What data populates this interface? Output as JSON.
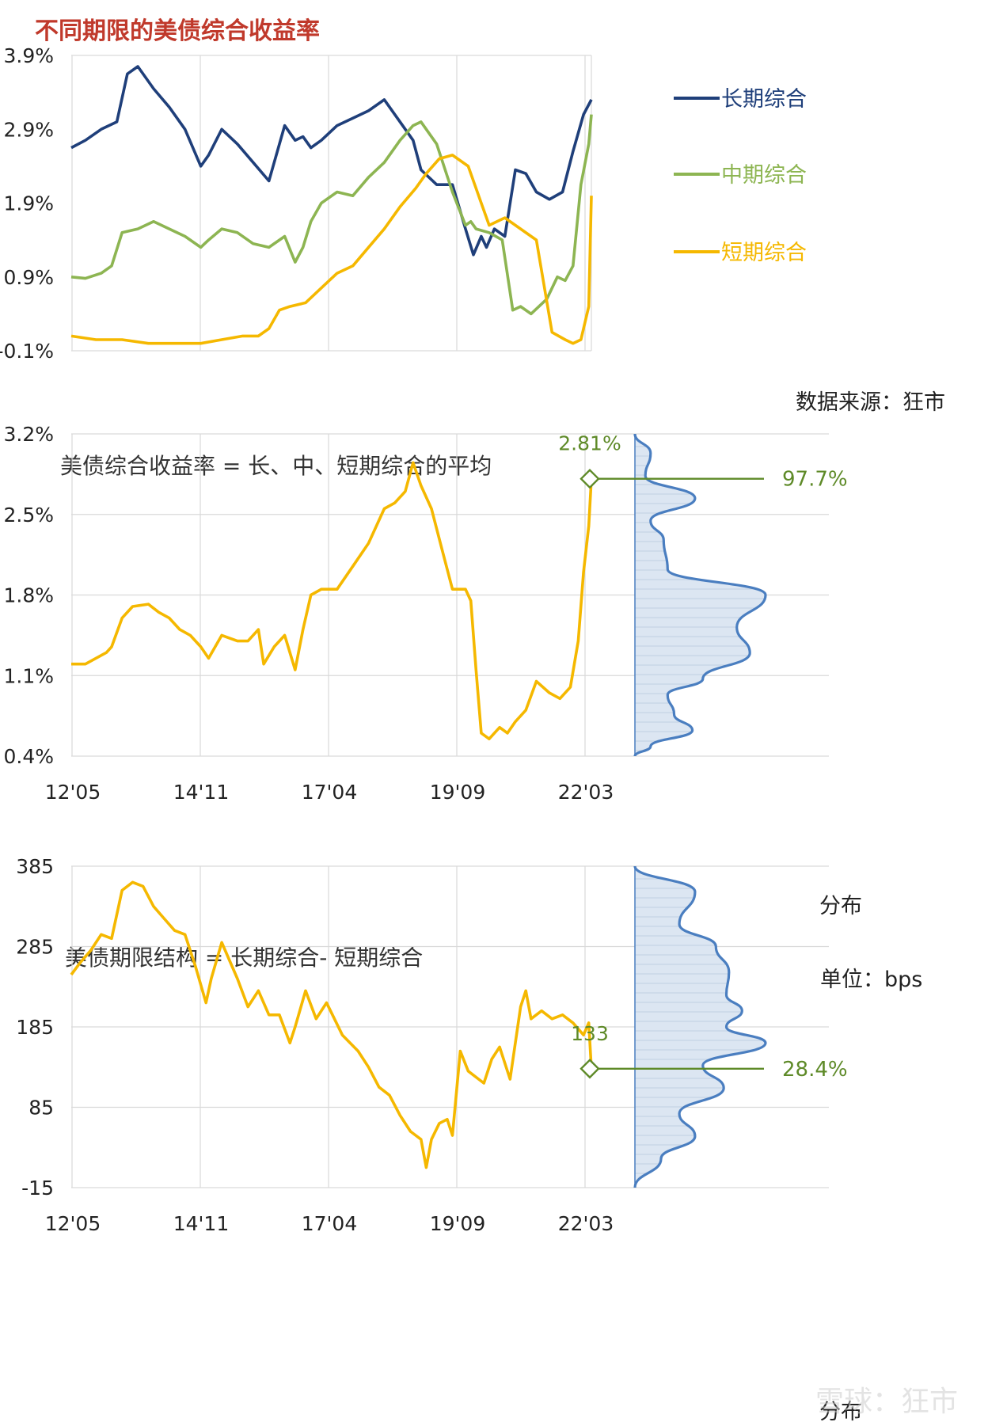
{
  "title": "不同期限的美债综合收益率",
  "source_note": "数据来源：狂市",
  "x_ticks": [
    "12'05",
    "14'11",
    "17'04",
    "19'09",
    "22'03"
  ],
  "panel2_title": "美债综合收益率 = 长、中、短期综合的平均",
  "panel3_title": "美债期限结构 = 长期综合- 短期综合",
  "panel3_unit": "单位：bps",
  "dist_label": "分布",
  "watermark": "雪球：狂市",
  "colors": {
    "long": "#1F3F7A",
    "mid": "#8DB552",
    "short": "#F5B800",
    "avg": "#F5B800",
    "marker": "#5E8A28",
    "dist_line": "#4A7EC0",
    "dist_fill": "#DCE6F2",
    "title": "#C0392B",
    "grid": "#D9D9D9"
  },
  "chart_data": [
    {
      "type": "line",
      "title": "不同期限的美债综合收益率",
      "x_ticks": [
        "12'05",
        "14'11",
        "17'04",
        "19'09",
        "22'03"
      ],
      "y_ticks": [
        "3.9%",
        "2.9%",
        "1.9%",
        "0.9%",
        "-0.1%"
      ],
      "ylim": [
        -0.1,
        3.9
      ],
      "xlim": [
        2012.33,
        2022.25
      ],
      "grid": "vertical",
      "legend": "right",
      "series": [
        {
          "name": "长期综合",
          "x": [
            2012.33,
            2012.6,
            2012.9,
            2013.2,
            2013.4,
            2013.6,
            2013.9,
            2014.2,
            2014.5,
            2014.8,
            2014.95,
            2015.2,
            2015.5,
            2015.8,
            2016.1,
            2016.4,
            2016.6,
            2016.75,
            2016.9,
            2017.1,
            2017.4,
            2017.7,
            2018.0,
            2018.3,
            2018.6,
            2018.85,
            2019.0,
            2019.3,
            2019.6,
            2019.85,
            2020.0,
            2020.15,
            2020.25,
            2020.4,
            2020.6,
            2020.8,
            2021.0,
            2021.2,
            2021.45,
            2021.7,
            2021.9,
            2022.1,
            2022.25
          ],
          "values": [
            2.65,
            2.75,
            2.9,
            3.0,
            3.65,
            3.75,
            3.45,
            3.2,
            2.9,
            2.4,
            2.55,
            2.9,
            2.7,
            2.45,
            2.2,
            2.95,
            2.75,
            2.8,
            2.65,
            2.75,
            2.95,
            3.05,
            3.15,
            3.3,
            3.0,
            2.75,
            2.35,
            2.15,
            2.15,
            1.55,
            1.2,
            1.45,
            1.3,
            1.55,
            1.45,
            2.35,
            2.3,
            2.05,
            1.95,
            2.05,
            2.6,
            3.1,
            3.3
          ]
        },
        {
          "name": "中期综合",
          "x": [
            2012.33,
            2012.6,
            2012.9,
            2013.1,
            2013.3,
            2013.6,
            2013.9,
            2014.2,
            2014.5,
            2014.8,
            2014.95,
            2015.2,
            2015.5,
            2015.8,
            2016.1,
            2016.4,
            2016.6,
            2016.75,
            2016.9,
            2017.1,
            2017.4,
            2017.7,
            2018.0,
            2018.3,
            2018.6,
            2018.85,
            2019.0,
            2019.3,
            2019.6,
            2019.85,
            2019.95,
            2020.05,
            2020.3,
            2020.55,
            2020.75,
            2020.9,
            2021.1,
            2021.4,
            2021.6,
            2021.75,
            2021.9,
            2022.05,
            2022.2,
            2022.25
          ],
          "values": [
            0.9,
            0.88,
            0.95,
            1.05,
            1.5,
            1.55,
            1.65,
            1.55,
            1.45,
            1.3,
            1.4,
            1.55,
            1.5,
            1.35,
            1.3,
            1.45,
            1.1,
            1.3,
            1.65,
            1.9,
            2.05,
            2.0,
            2.25,
            2.45,
            2.75,
            2.95,
            3.0,
            2.7,
            2.05,
            1.6,
            1.65,
            1.55,
            1.5,
            1.4,
            0.45,
            0.5,
            0.4,
            0.6,
            0.9,
            0.85,
            1.05,
            2.15,
            2.7,
            3.1
          ]
        },
        {
          "name": "短期综合",
          "x": [
            2012.33,
            2012.8,
            2013.3,
            2013.8,
            2014.3,
            2014.8,
            2015.2,
            2015.6,
            2015.9,
            2016.1,
            2016.3,
            2016.5,
            2016.8,
            2017.1,
            2017.4,
            2017.7,
            2018.0,
            2018.3,
            2018.6,
            2018.9,
            2019.1,
            2019.35,
            2019.6,
            2019.9,
            2020.05,
            2020.15,
            2020.3,
            2020.6,
            2020.9,
            2021.2,
            2021.5,
            2021.75,
            2021.9,
            2022.05,
            2022.2,
            2022.25
          ],
          "values": [
            0.1,
            0.05,
            0.05,
            0.0,
            0.0,
            0.0,
            0.05,
            0.1,
            0.1,
            0.2,
            0.45,
            0.5,
            0.55,
            0.75,
            0.95,
            1.05,
            1.3,
            1.55,
            1.85,
            2.1,
            2.3,
            2.5,
            2.55,
            2.4,
            2.1,
            1.9,
            1.6,
            1.7,
            1.55,
            1.4,
            0.15,
            0.05,
            0.0,
            0.05,
            0.5,
            2.0
          ]
        }
      ]
    },
    {
      "type": "line",
      "title": "美债综合收益率 = 长、中、短期综合的平均",
      "x_ticks": [
        "12'05",
        "14'11",
        "17'04",
        "19'09",
        "22'03"
      ],
      "y_ticks": [
        "3.2%",
        "2.5%",
        "1.8%",
        "1.1%",
        "0.4%"
      ],
      "ylim": [
        0.4,
        3.2
      ],
      "xlim": [
        2012.33,
        2022.25
      ],
      "grid": "both",
      "series": [
        {
          "name": "",
          "x": [
            2012.33,
            2012.6,
            2012.8,
            2013.0,
            2013.1,
            2013.3,
            2013.5,
            2013.8,
            2014.0,
            2014.2,
            2014.4,
            2014.6,
            2014.8,
            2014.95,
            2015.2,
            2015.5,
            2015.7,
            2015.9,
            2016.0,
            2016.2,
            2016.4,
            2016.5,
            2016.6,
            2016.75,
            2016.9,
            2017.1,
            2017.4,
            2017.7,
            2018.0,
            2018.3,
            2018.5,
            2018.7,
            2018.85,
            2019.0,
            2019.2,
            2019.4,
            2019.6,
            2019.85,
            2019.95,
            2020.05,
            2020.15,
            2020.3,
            2020.5,
            2020.65,
            2020.8,
            2021.0,
            2021.2,
            2021.45,
            2021.65,
            2021.85,
            2022.0,
            2022.1,
            2022.2,
            2022.25
          ],
          "values": [
            1.2,
            1.2,
            1.25,
            1.3,
            1.35,
            1.6,
            1.7,
            1.72,
            1.65,
            1.6,
            1.5,
            1.45,
            1.35,
            1.25,
            1.45,
            1.4,
            1.4,
            1.5,
            1.2,
            1.35,
            1.45,
            1.3,
            1.15,
            1.5,
            1.8,
            1.85,
            1.85,
            2.05,
            2.25,
            2.55,
            2.6,
            2.7,
            2.95,
            2.75,
            2.55,
            2.2,
            1.85,
            1.85,
            1.75,
            1.15,
            0.6,
            0.55,
            0.65,
            0.6,
            0.7,
            0.8,
            1.05,
            0.95,
            0.9,
            1.0,
            1.4,
            2.0,
            2.4,
            2.81
          ]
        }
      ],
      "annotation": {
        "value_label": "2.81%",
        "percentile_label": "97.7%",
        "value": 2.81
      }
    },
    {
      "type": "line",
      "title": "美债期限结构 = 长期综合- 短期综合",
      "x_ticks": [
        "12'05",
        "14'11",
        "17'04",
        "19'09",
        "22'03"
      ],
      "y_ticks": [
        "385",
        "285",
        "185",
        "85",
        "-15"
      ],
      "ylim": [
        -15,
        385
      ],
      "xlim": [
        2012.33,
        2022.25
      ],
      "grid": "both",
      "unit": "bps",
      "series": [
        {
          "name": "",
          "x": [
            2012.33,
            2012.5,
            2012.7,
            2012.9,
            2013.1,
            2013.3,
            2013.5,
            2013.7,
            2013.9,
            2014.1,
            2014.3,
            2014.5,
            2014.7,
            2014.9,
            2015.0,
            2015.2,
            2015.4,
            2015.5,
            2015.7,
            2015.9,
            2016.1,
            2016.3,
            2016.5,
            2016.6,
            2016.8,
            2017.0,
            2017.2,
            2017.5,
            2017.8,
            2018.0,
            2018.2,
            2018.4,
            2018.6,
            2018.8,
            2018.9,
            2019.0,
            2019.1,
            2019.2,
            2019.35,
            2019.5,
            2019.6,
            2019.75,
            2019.9,
            2020.1,
            2020.2,
            2020.35,
            2020.5,
            2020.7,
            2020.9,
            2021.0,
            2021.1,
            2021.3,
            2021.5,
            2021.7,
            2021.9,
            2022.1,
            2022.2,
            2022.25
          ],
          "values": [
            250,
            265,
            280,
            300,
            295,
            355,
            365,
            360,
            335,
            320,
            305,
            300,
            260,
            215,
            245,
            290,
            260,
            245,
            210,
            230,
            200,
            200,
            165,
            185,
            230,
            195,
            215,
            175,
            155,
            135,
            110,
            100,
            75,
            55,
            50,
            45,
            10,
            45,
            65,
            70,
            50,
            155,
            130,
            120,
            115,
            145,
            160,
            120,
            210,
            230,
            195,
            205,
            195,
            200,
            190,
            175,
            190,
            133
          ]
        }
      ],
      "annotation": {
        "value_label": "133",
        "percentile_label": "28.4%",
        "value": 133
      }
    }
  ]
}
